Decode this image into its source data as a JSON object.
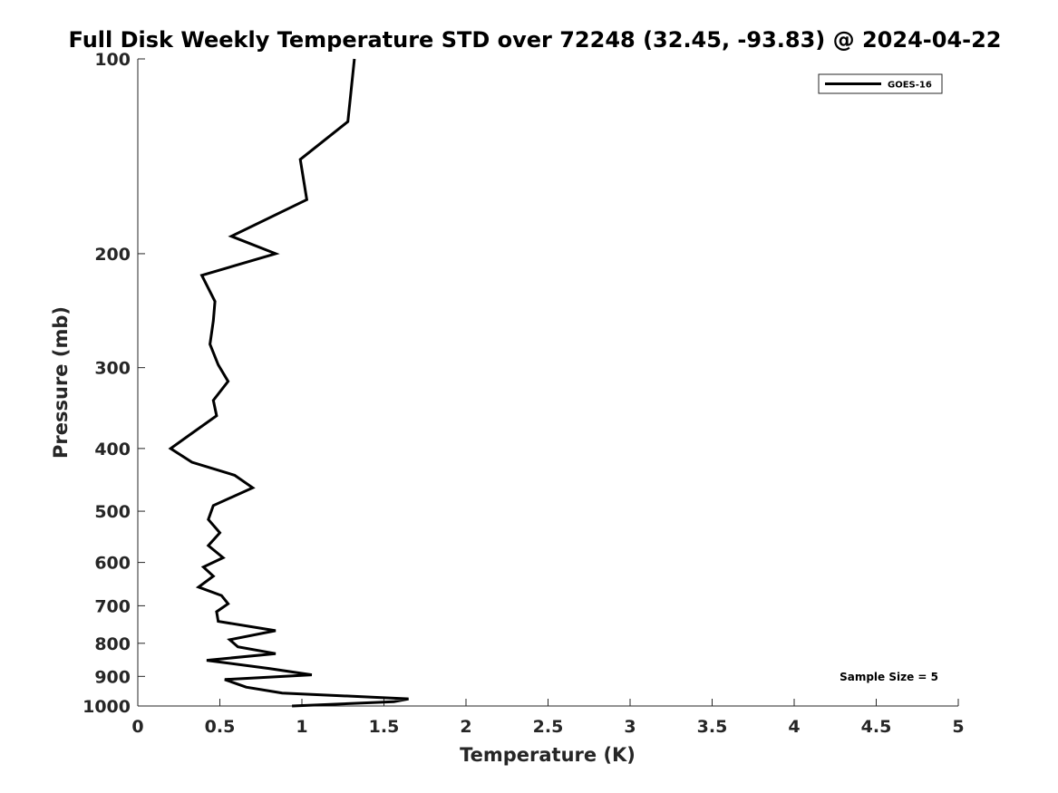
{
  "chart_data": {
    "type": "line",
    "title": "Full Disk Weekly Temperature STD over 72248 (32.45, -93.83) @ 2024-04-22",
    "xlabel": "Temperature (K)",
    "ylabel": "Pressure (mb)",
    "xlim": [
      0,
      5
    ],
    "ylim": [
      100,
      1000
    ],
    "y_scale": "log",
    "y_reversed": true,
    "x_ticks": [
      "0",
      "0.5",
      "1",
      "1.5",
      "2",
      "2.5",
      "3",
      "3.5",
      "4",
      "4.5",
      "5"
    ],
    "x_tick_values": [
      0,
      0.5,
      1,
      1.5,
      2,
      2.5,
      3,
      3.5,
      4,
      4.5,
      5
    ],
    "y_ticks": [
      "100",
      "200",
      "300",
      "400",
      "500",
      "600",
      "700",
      "800",
      "900",
      "1000"
    ],
    "y_tick_values": [
      100,
      200,
      300,
      400,
      500,
      600,
      700,
      800,
      900,
      1000
    ],
    "grid": false,
    "legend_position": "top-right",
    "series": [
      {
        "name": "GOES-16",
        "color": "#000000",
        "x": [
          1.32,
          1.28,
          0.99,
          1.03,
          0.57,
          0.84,
          0.39,
          0.47,
          0.46,
          0.44,
          0.49,
          0.55,
          0.46,
          0.48,
          0.31,
          0.2,
          0.33,
          0.59,
          0.7,
          0.46,
          0.43,
          0.5,
          0.43,
          0.52,
          0.4,
          0.46,
          0.37,
          0.51,
          0.55,
          0.48,
          0.49,
          0.84,
          0.56,
          0.61,
          0.84,
          0.42,
          0.8,
          1.06,
          0.53,
          0.66,
          0.88,
          1.65,
          1.56,
          0.94
        ],
        "y": [
          100,
          125,
          143,
          165,
          188,
          200,
          216,
          237,
          254,
          276,
          297,
          315,
          337,
          356,
          382,
          400,
          420,
          440,
          460,
          490,
          515,
          540,
          565,
          590,
          610,
          630,
          655,
          675,
          695,
          715,
          740,
          765,
          790,
          810,
          830,
          850,
          875,
          895,
          910,
          935,
          955,
          975,
          985,
          1000
        ]
      }
    ],
    "annotations": [
      {
        "text": "Sample Size = 5"
      }
    ]
  }
}
